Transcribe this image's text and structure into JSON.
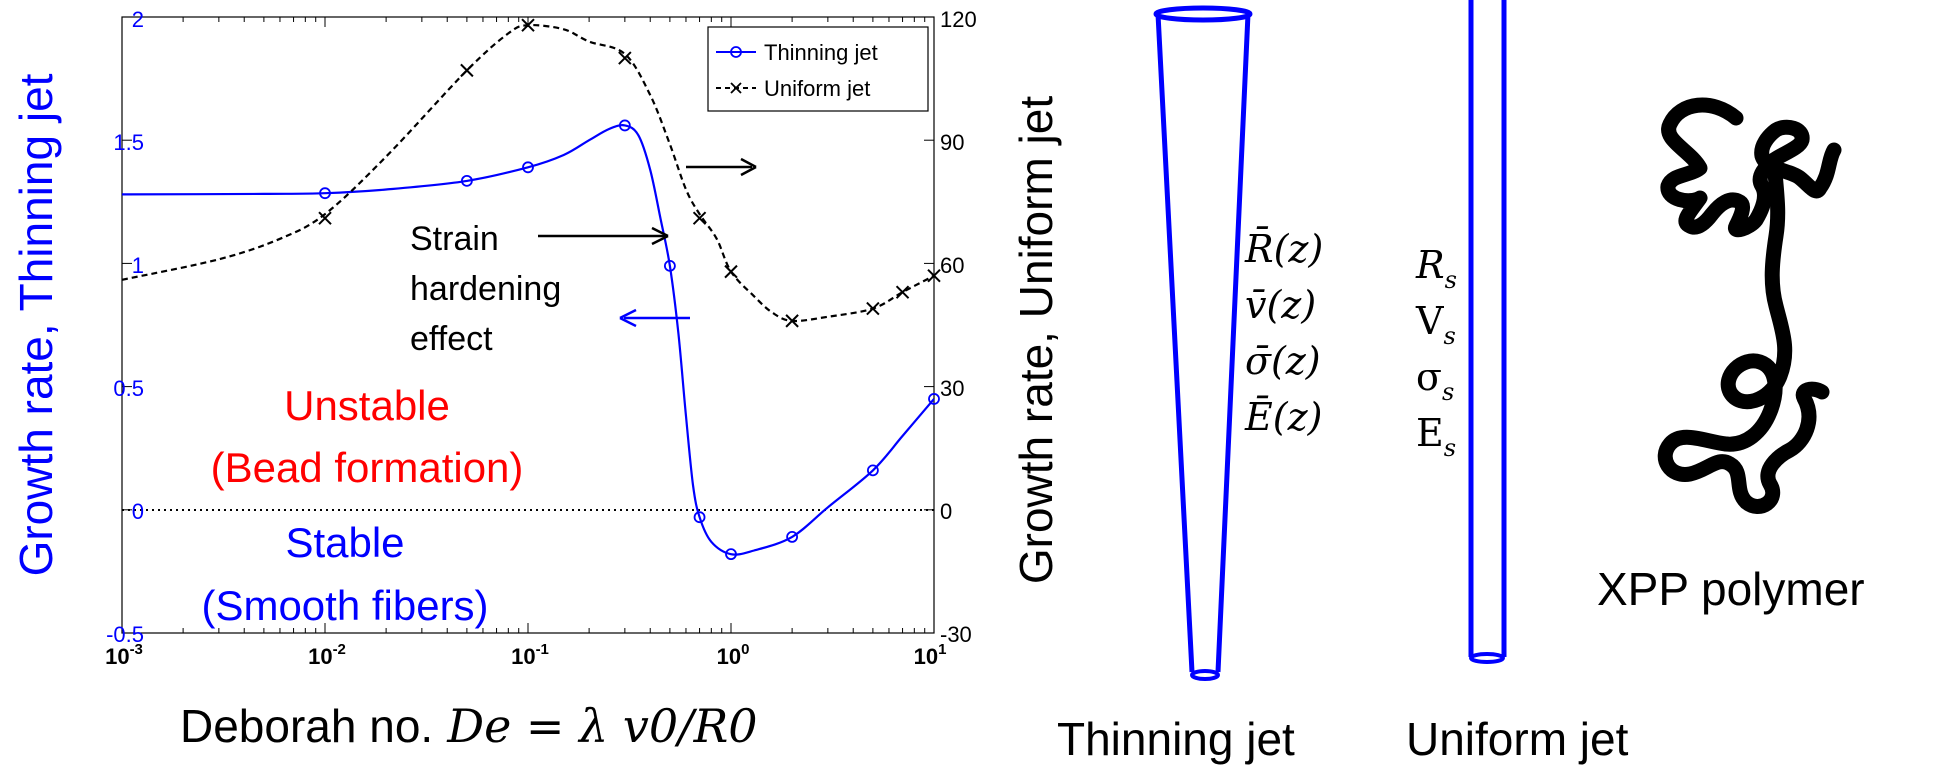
{
  "chart_data": {
    "type": "line",
    "xscale": "log",
    "xlim": [
      0.001,
      10
    ],
    "x_ticks": [
      "10",
      "10",
      "10",
      "10",
      "10"
    ],
    "x_tick_exponents": [
      "-3",
      "-2",
      "-1",
      "0",
      "1"
    ],
    "xlabel": "Deborah no.",
    "xlabel_math": "De = λ v0/R0",
    "left_axis": {
      "label": "Growth rate, Thinning jet",
      "ylim": [
        -0.5,
        2
      ],
      "ticks": [
        "2",
        "1.5",
        "1",
        "0.5",
        "0",
        "-0.5"
      ],
      "color": "#0000ff"
    },
    "right_axis": {
      "label": "Growth rate, Uniform jet",
      "ylim": [
        -30,
        120
      ],
      "ticks": [
        "120",
        "90",
        "60",
        "30",
        "0",
        "-30"
      ]
    },
    "legend": {
      "position": "top-right",
      "entries": [
        "Thinning jet",
        "Uniform jet"
      ]
    },
    "series": [
      {
        "name": "Thinning jet",
        "axis": "left",
        "color": "#0000ff",
        "marker": "circle",
        "line": "solid",
        "curve": [
          [
            0.001,
            1.28
          ],
          [
            0.005,
            1.282
          ],
          [
            0.01,
            1.285
          ],
          [
            0.02,
            1.3
          ],
          [
            0.05,
            1.335
          ],
          [
            0.1,
            1.39
          ],
          [
            0.15,
            1.44
          ],
          [
            0.2,
            1.5
          ],
          [
            0.25,
            1.545
          ],
          [
            0.3,
            1.56
          ],
          [
            0.35,
            1.52
          ],
          [
            0.4,
            1.38
          ],
          [
            0.45,
            1.18
          ],
          [
            0.5,
            0.99
          ],
          [
            0.55,
            0.72
          ],
          [
            0.6,
            0.38
          ],
          [
            0.65,
            0.1
          ],
          [
            0.7,
            -0.03
          ],
          [
            0.8,
            -0.13
          ],
          [
            1,
            -0.18
          ],
          [
            1.3,
            -0.165
          ],
          [
            2,
            -0.11
          ],
          [
            3,
            0.01
          ],
          [
            5,
            0.16
          ],
          [
            7,
            0.3
          ],
          [
            10,
            0.45
          ]
        ],
        "markers": [
          [
            0.01,
            1.285
          ],
          [
            0.05,
            1.335
          ],
          [
            0.1,
            1.39
          ],
          [
            0.3,
            1.56
          ],
          [
            0.5,
            0.99
          ],
          [
            0.7,
            -0.03
          ],
          [
            1,
            -0.18
          ],
          [
            2,
            -0.11
          ],
          [
            5,
            0.16
          ],
          [
            10,
            0.45
          ]
        ]
      },
      {
        "name": "Uniform jet",
        "axis": "right",
        "color": "#000000",
        "marker": "x",
        "line": "dashed",
        "curve": [
          [
            0.001,
            56
          ],
          [
            0.003,
            61
          ],
          [
            0.006,
            66
          ],
          [
            0.01,
            72
          ],
          [
            0.02,
            86
          ],
          [
            0.05,
            107
          ],
          [
            0.08,
            116
          ],
          [
            0.1,
            118
          ],
          [
            0.15,
            117
          ],
          [
            0.2,
            114
          ],
          [
            0.3,
            111
          ],
          [
            0.4,
            101
          ],
          [
            0.5,
            89
          ],
          [
            0.6,
            78
          ],
          [
            0.7,
            72
          ],
          [
            0.85,
            66
          ],
          [
            1,
            58
          ],
          [
            1.3,
            52
          ],
          [
            1.6,
            48
          ],
          [
            2,
            46
          ],
          [
            3,
            47
          ],
          [
            5,
            49
          ],
          [
            7,
            53
          ],
          [
            10,
            57
          ]
        ],
        "markers": [
          [
            0.01,
            71
          ],
          [
            0.05,
            107
          ],
          [
            0.1,
            118
          ],
          [
            0.3,
            110
          ],
          [
            0.7,
            71
          ],
          [
            1,
            58
          ],
          [
            2,
            46
          ],
          [
            5,
            49
          ],
          [
            7,
            53
          ],
          [
            10,
            57
          ]
        ]
      }
    ],
    "zero_line": 0,
    "annotations": {
      "strain_text": [
        "Strain",
        "hardening",
        "effect"
      ],
      "unstable_text": [
        "Unstable",
        "(Bead formation)"
      ],
      "stable_text": [
        "Stable",
        "(Smooth fibers)"
      ]
    }
  },
  "diagram": {
    "thinning_jet_label": "Thinning jet",
    "uniform_jet_label": "Uniform jet",
    "polymer_label": "XPP polymer",
    "jet_color": "#0000ff",
    "thinning_vars": [
      "R̄(z)",
      "v̄(z)",
      "σ̄(z)",
      "Ē(z)"
    ],
    "uniform_vars": [
      {
        "base": "R",
        "sub": "s",
        "italic": true
      },
      {
        "base": "V",
        "sub": "s",
        "italic": false
      },
      {
        "base": "σ",
        "sub": "s",
        "italic": false
      },
      {
        "base": "E",
        "sub": "s",
        "italic": false
      }
    ]
  }
}
